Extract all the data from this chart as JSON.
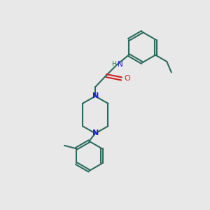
{
  "background_color": "#e8e8e8",
  "bond_color": "#2d6b5e",
  "nitrogen_color": "#2020cc",
  "oxygen_color": "#cc2020",
  "line_width": 1.5,
  "figsize": [
    3.0,
    3.0
  ],
  "dpi": 100,
  "xlim": [
    0,
    10
  ],
  "ylim": [
    0,
    10
  ]
}
